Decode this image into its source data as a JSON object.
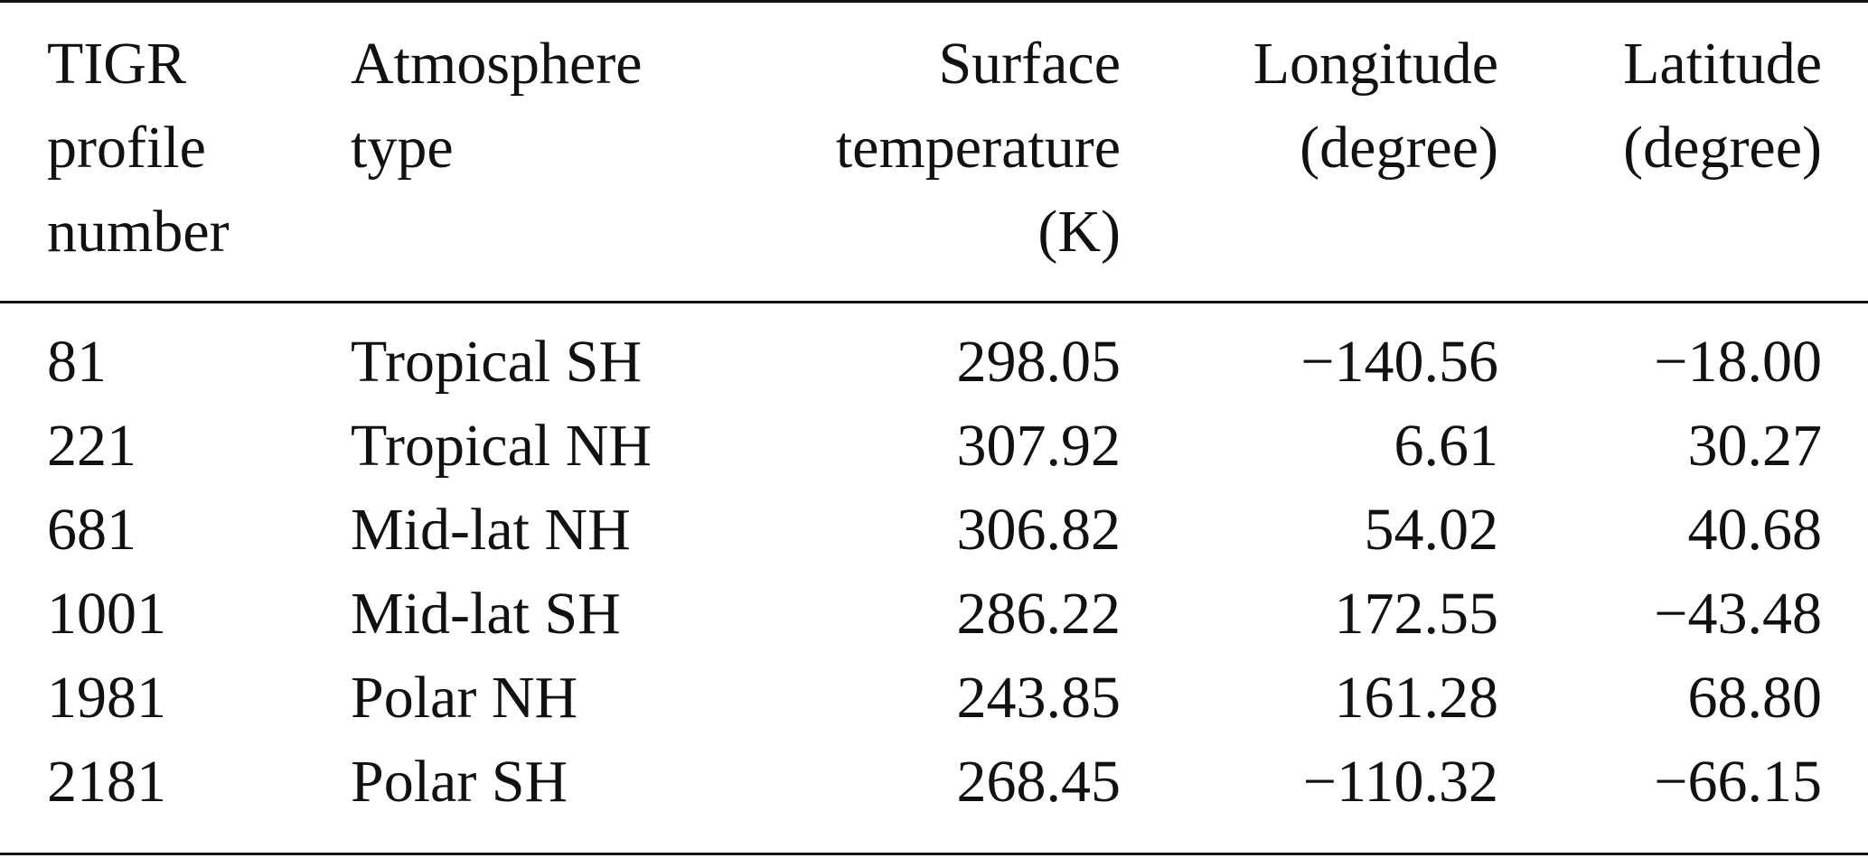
{
  "table": {
    "headers": [
      "TIGR\nprofile\nnumber",
      "Atmosphere\ntype",
      "Surface\ntemperature\n(K)",
      "Longitude\n(degree)",
      "Latitude\n(degree)"
    ],
    "rows": [
      [
        "81",
        "Tropical SH",
        "298.05",
        "−140.56",
        "−18.00"
      ],
      [
        "221",
        "Tropical NH",
        "307.92",
        "6.61",
        "30.27"
      ],
      [
        "681",
        "Mid-lat NH",
        "306.82",
        "54.02",
        "40.68"
      ],
      [
        "1001",
        "Mid-lat SH",
        "286.22",
        "172.55",
        "−43.48"
      ],
      [
        "1981",
        "Polar NH",
        "243.85",
        "161.28",
        "68.80"
      ],
      [
        "2181",
        "Polar SH",
        "268.45",
        "−110.32",
        "−66.15"
      ]
    ]
  }
}
